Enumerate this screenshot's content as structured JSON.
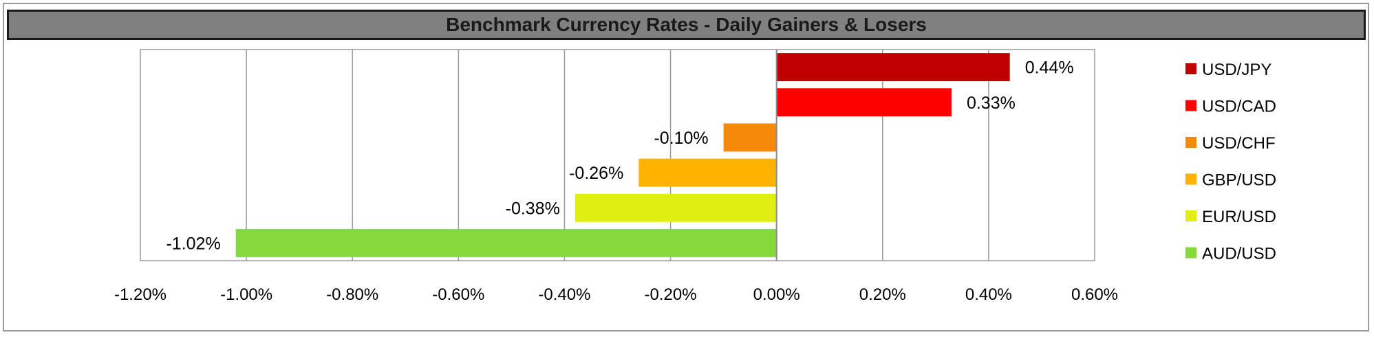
{
  "title": "Benchmark Currency Rates - Daily Gainers & Losers",
  "chart_data": {
    "type": "bar",
    "orientation": "horizontal",
    "title": "Benchmark Currency Rates - Daily Gainers & Losers",
    "categories": [
      "USD/JPY",
      "USD/CAD",
      "USD/CHF",
      "GBP/USD",
      "EUR/USD",
      "AUD/USD"
    ],
    "values": [
      0.44,
      0.33,
      -0.1,
      -0.26,
      -0.38,
      -1.02
    ],
    "data_labels": [
      "0.44%",
      "0.33%",
      "-0.10%",
      "-0.26%",
      "-0.38%",
      "-1.02%"
    ],
    "colors": [
      "#c00000",
      "#ff0000",
      "#f58a0a",
      "#ffb300",
      "#e0ee12",
      "#86d93a"
    ],
    "xlim": [
      -1.2,
      0.6
    ],
    "x_ticks": [
      -1.2,
      -1.0,
      -0.8,
      -0.6,
      -0.4,
      -0.2,
      0.0,
      0.2,
      0.4,
      0.6
    ],
    "x_tick_labels": [
      "-1.20%",
      "-1.00%",
      "-0.80%",
      "-0.60%",
      "-0.40%",
      "-0.20%",
      "0.00%",
      "0.20%",
      "0.40%",
      "0.60%"
    ],
    "grid": true,
    "legend_position": "right",
    "legend": [
      "USD/JPY",
      "USD/CAD",
      "USD/CHF",
      "GBP/USD",
      "EUR/USD",
      "AUD/USD"
    ]
  }
}
